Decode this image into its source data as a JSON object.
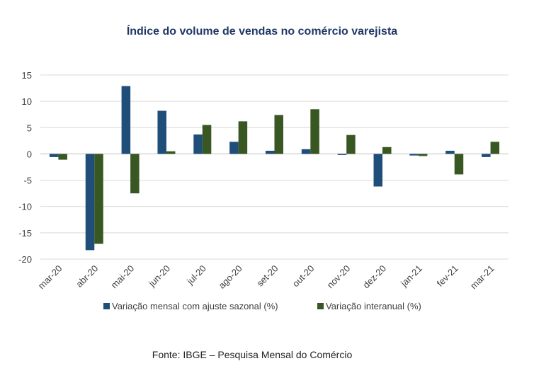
{
  "chart_data": {
    "type": "bar",
    "title": "Índice do volume de vendas no comércio varejista",
    "categories": [
      "mar-20",
      "abr-20",
      "mai-20",
      "jun-20",
      "jul-20",
      "ago-20",
      "set-20",
      "out-20",
      "nov-20",
      "dez-20",
      "jan-21",
      "fev-21",
      "mar-21"
    ],
    "series": [
      {
        "name": "Variação mensal com ajuste sazonal (%)",
        "color": "#1f4e79",
        "values": [
          -0.6,
          -18.3,
          12.9,
          8.2,
          3.7,
          2.3,
          0.6,
          0.9,
          -0.2,
          -6.2,
          -0.3,
          0.6,
          -0.6
        ]
      },
      {
        "name": "Variação interanual (%)",
        "color": "#385723",
        "values": [
          -1.1,
          -17.1,
          -7.5,
          0.5,
          5.5,
          6.2,
          7.4,
          8.5,
          3.6,
          1.3,
          -0.4,
          -3.9,
          2.3
        ]
      }
    ],
    "ylim": [
      -20,
      15
    ],
    "yticks": [
      15,
      10,
      5,
      0,
      -5,
      -10,
      -15,
      -20
    ],
    "xlabel": "",
    "ylabel": "",
    "grid": true,
    "legend_position": "bottom"
  },
  "source": "Fonte: IBGE – Pesquisa Mensal do Comércio"
}
